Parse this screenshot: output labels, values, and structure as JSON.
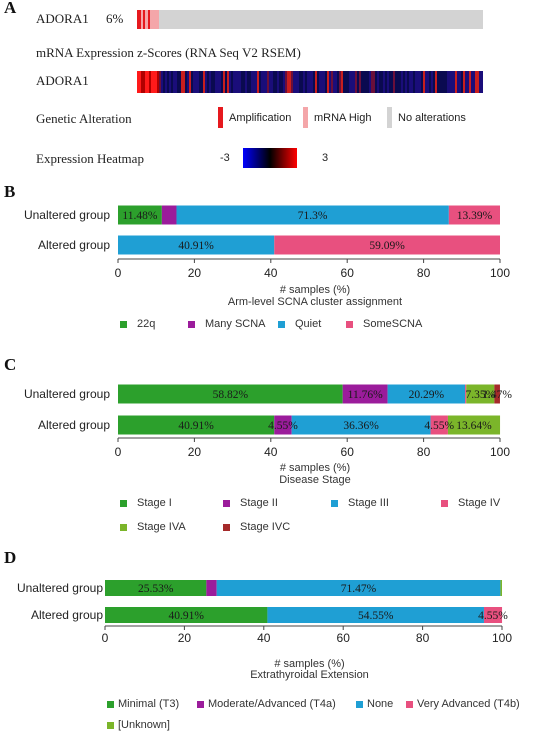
{
  "panel_a": {
    "letter": "A",
    "gene": "ADORA1",
    "pct": "6%",
    "heatmap_title": "mRNA Expression z-Scores (RNA Seq V2 RSEM)",
    "heatmap_gene": "ADORA1",
    "legend_label_alteration": "Genetic Alteration",
    "legend_label_heatmap": "Expression Heatmap",
    "legend_items": [
      {
        "label": "Amplification",
        "color": "#e6191e"
      },
      {
        "label": "mRNA High",
        "color": "#f4a6a9"
      },
      {
        "label": "No alterations",
        "color": "#d3d3d3"
      }
    ],
    "scale_min": "-3",
    "scale_max": "3",
    "colors": {
      "amplification": "#e6191e",
      "mrna_high": "#f4a6a9",
      "no_alteration": "#d3d3d3"
    }
  },
  "panels": {
    "B": {
      "letter": "B"
    },
    "C": {
      "letter": "C"
    },
    "D": {
      "letter": "D"
    }
  },
  "chart_data": [
    {
      "id": "B",
      "type": "bar",
      "orientation": "horizontal",
      "stacked": true,
      "categories": [
        "Unaltered group",
        "Altered group"
      ],
      "series": [
        {
          "name": "22q",
          "color": "#2ca02c",
          "values": [
            11.48,
            0
          ],
          "labels": [
            "11.48%",
            ""
          ]
        },
        {
          "name": "Many SCNA",
          "color": "#9b1c9b",
          "values": [
            3.83,
            0
          ],
          "labels": [
            "",
            ""
          ]
        },
        {
          "name": "Quiet",
          "color": "#1f9fd4",
          "values": [
            71.3,
            40.91
          ],
          "labels": [
            "71.3%",
            "40.91%"
          ]
        },
        {
          "name": "SomeSCNA",
          "color": "#e8507f",
          "values": [
            13.39,
            59.09
          ],
          "labels": [
            "13.39%",
            "59.09%"
          ]
        }
      ],
      "xlabel": "# samples (%)",
      "subtitle": "Arm-level SCNA cluster assignment",
      "xlim": [
        0,
        100
      ],
      "xticks": [
        0,
        20,
        40,
        60,
        80,
        100
      ],
      "legend": "bottom"
    },
    {
      "id": "C",
      "type": "bar",
      "orientation": "horizontal",
      "stacked": true,
      "categories": [
        "Unaltered group",
        "Altered group"
      ],
      "series": [
        {
          "name": "Stage I",
          "color": "#2ca02c",
          "values": [
            58.82,
            40.91
          ],
          "labels": [
            "58.82%",
            "40.91%"
          ]
        },
        {
          "name": "Stage II",
          "color": "#9b1c9b",
          "values": [
            11.76,
            4.55
          ],
          "labels": [
            "11.76%",
            "4.55%"
          ]
        },
        {
          "name": "Stage III",
          "color": "#1f9fd4",
          "values": [
            20.29,
            36.36
          ],
          "labels": [
            "20.29%",
            "36.36%"
          ]
        },
        {
          "name": "Stage IV",
          "color": "#e8507f",
          "values": [
            0.3,
            4.55
          ],
          "labels": [
            "",
            "4.55%"
          ]
        },
        {
          "name": "Stage IVA",
          "color": "#7bb52a",
          "values": [
            7.35,
            13.64
          ],
          "labels": [
            "7.35%",
            "13.64%"
          ]
        },
        {
          "name": "Stage IVC",
          "color": "#a52a2a",
          "values": [
            1.47,
            0
          ],
          "labels": [
            "1.47%",
            ""
          ]
        }
      ],
      "xlabel": "# samples (%)",
      "subtitle": "Disease Stage",
      "xlim": [
        0,
        100
      ],
      "xticks": [
        0,
        20,
        40,
        60,
        80,
        100
      ],
      "legend": "bottom"
    },
    {
      "id": "D",
      "type": "bar",
      "orientation": "horizontal",
      "stacked": true,
      "categories": [
        "Unaltered group",
        "Altered group"
      ],
      "series": [
        {
          "name": "Minimal (T3)",
          "color": "#2ca02c",
          "values": [
            25.53,
            40.91
          ],
          "labels": [
            "25.53%",
            "40.91%"
          ]
        },
        {
          "name": "Moderate/Advanced (T4a)",
          "color": "#9b1c9b",
          "values": [
            2.6,
            0
          ],
          "labels": [
            "",
            ""
          ]
        },
        {
          "name": "None",
          "color": "#1f9fd4",
          "values": [
            71.47,
            54.55
          ],
          "labels": [
            "71.47%",
            "54.55%"
          ]
        },
        {
          "name": "Very Advanced (T4b)",
          "color": "#e8507f",
          "values": [
            0,
            4.55
          ],
          "labels": [
            "",
            "4.55%"
          ]
        },
        {
          "name": "[Unknown]",
          "color": "#7bb52a",
          "values": [
            0.4,
            0
          ],
          "labels": [
            "",
            ""
          ]
        }
      ],
      "xlabel": "# samples (%)",
      "subtitle": "Extrathyroidal Extension",
      "xlim": [
        0,
        100
      ],
      "xticks": [
        0,
        20,
        40,
        60,
        80,
        100
      ],
      "legend": "bottom"
    }
  ]
}
